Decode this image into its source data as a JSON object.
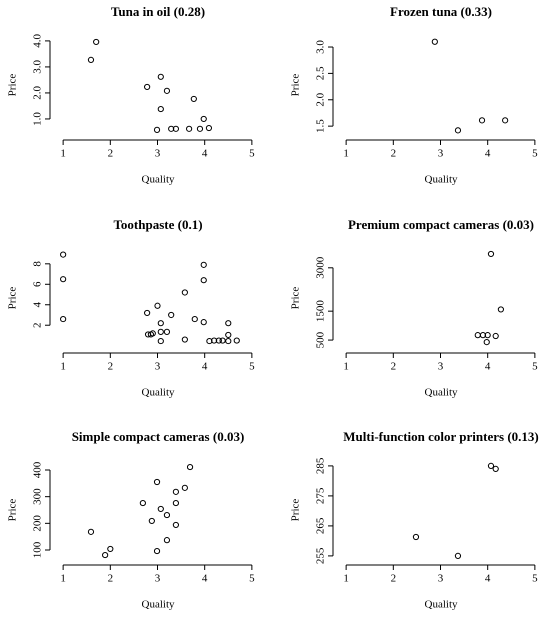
{
  "chart_data": [
    {
      "type": "scatter",
      "title": "Tuna in oil (0.28)",
      "xlabel": "Quality",
      "ylabel": "Price",
      "color": "#000000",
      "x": [
        1.59,
        1.7,
        2.78,
        3.07,
        3.2,
        3.07,
        3.77,
        2.99,
        3.29,
        3.39,
        3.67,
        3.9,
        3.98,
        4.09
      ],
      "values": [
        3.27,
        3.96,
        2.23,
        2.62,
        2.08,
        1.38,
        1.77,
        0.58,
        0.62,
        0.62,
        0.62,
        0.62,
        1.0,
        0.65
      ],
      "xlim": [
        0.87,
        5.13
      ],
      "ylim": [
        0.46,
        4.15
      ],
      "xticks": [
        1,
        2,
        3,
        4,
        5
      ],
      "yticks": [
        {
          "value": 1,
          "label": "1.0"
        },
        {
          "value": 2,
          "label": "2.0"
        },
        {
          "value": 3,
          "label": "3.0"
        },
        {
          "value": 4,
          "label": "4.0"
        }
      ]
    },
    {
      "type": "scatter",
      "title": "Frozen tuna (0.33)",
      "xlabel": "Quality",
      "ylabel": "Price",
      "color": "#000000",
      "x": [
        2.88,
        3.37,
        3.88,
        4.37
      ],
      "values": [
        3.1,
        1.42,
        1.61,
        1.61
      ],
      "xlim": [
        0.87,
        5.13
      ],
      "ylim": [
        1.37,
        3.19
      ],
      "xticks": [
        1,
        2,
        3,
        4,
        5
      ],
      "yticks": [
        1.5,
        {
          "value": 2,
          "label": "2.0"
        },
        2.5,
        {
          "value": 3,
          "label": "3.0"
        }
      ]
    },
    {
      "type": "scatter",
      "title": "Toothpaste (0.1)",
      "xlabel": "Quality",
      "ylabel": "Price",
      "color": "#000000",
      "x": [
        1,
        1,
        1,
        2.78,
        2.8,
        2.86,
        2.9,
        3.0,
        3.07,
        3.07,
        3.2,
        3.29,
        3.07,
        3.58,
        3.58,
        3.79,
        3.98,
        3.98,
        3.98,
        4.1,
        4.2,
        4.3,
        4.38,
        4.5,
        4.5,
        4.5,
        4.68
      ],
      "values": [
        8.9,
        6.5,
        2.6,
        3.2,
        1.1,
        1.1,
        1.2,
        3.9,
        2.2,
        1.35,
        1.35,
        3.0,
        0.45,
        5.2,
        0.6,
        2.6,
        7.9,
        6.4,
        2.3,
        0.45,
        0.5,
        0.5,
        0.5,
        1.05,
        2.2,
        0.45,
        0.5
      ],
      "xlim": [
        0.87,
        5.13
      ],
      "ylim": [
        -0.03,
        9.35
      ],
      "xticks": [
        1,
        2,
        3,
        4,
        5
      ],
      "yticks": [
        2,
        4,
        6,
        8
      ]
    },
    {
      "type": "scatter",
      "title": "Premium compact cameras (0.03)",
      "xlabel": "Quality",
      "ylabel": "Price",
      "color": "#000000",
      "x": [
        4.07,
        4.28,
        3.79,
        3.9,
        4.0,
        3.98,
        4.17
      ],
      "values": [
        3480,
        1560,
        670,
        670,
        670,
        430,
        640
      ],
      "xlim": [
        0.87,
        5.13
      ],
      "ylim": [
        295,
        3616
      ],
      "xticks": [
        1,
        2,
        3,
        4,
        5
      ],
      "yticks": [
        500,
        1500,
        3000
      ]
    },
    {
      "type": "scatter",
      "title": "Simple compact cameras (0.03)",
      "xlabel": "Quality",
      "ylabel": "Price",
      "color": "#000000",
      "x": [
        3.69,
        2.99,
        3.58,
        3.39,
        2.69,
        3.39,
        3.07,
        3.2,
        2.88,
        3.39,
        3.2,
        1.59,
        2.0,
        1.89,
        2.99
      ],
      "values": [
        411,
        355,
        333,
        318,
        276,
        276,
        254,
        231,
        209,
        194,
        137,
        168,
        104,
        81,
        96
      ],
      "xlim": [
        0.87,
        5.13
      ],
      "ylim": [
        70,
        430
      ],
      "xticks": [
        1,
        2,
        3,
        4,
        5
      ],
      "yticks": [
        100,
        200,
        300,
        400
      ]
    },
    {
      "type": "scatter",
      "title": "Multi-function color printers (0.13)",
      "xlabel": "Quality",
      "ylabel": "Price",
      "color": "#000000",
      "x": [
        2.48,
        3.37,
        4.07,
        4.17
      ],
      "values": [
        261.3,
        255,
        285,
        284
      ],
      "xlim": [
        0.87,
        5.13
      ],
      "ylim": [
        254.3,
        286.3
      ],
      "xticks": [
        1,
        2,
        3,
        4,
        5
      ],
      "yticks": [
        255,
        265,
        275,
        285
      ]
    }
  ]
}
